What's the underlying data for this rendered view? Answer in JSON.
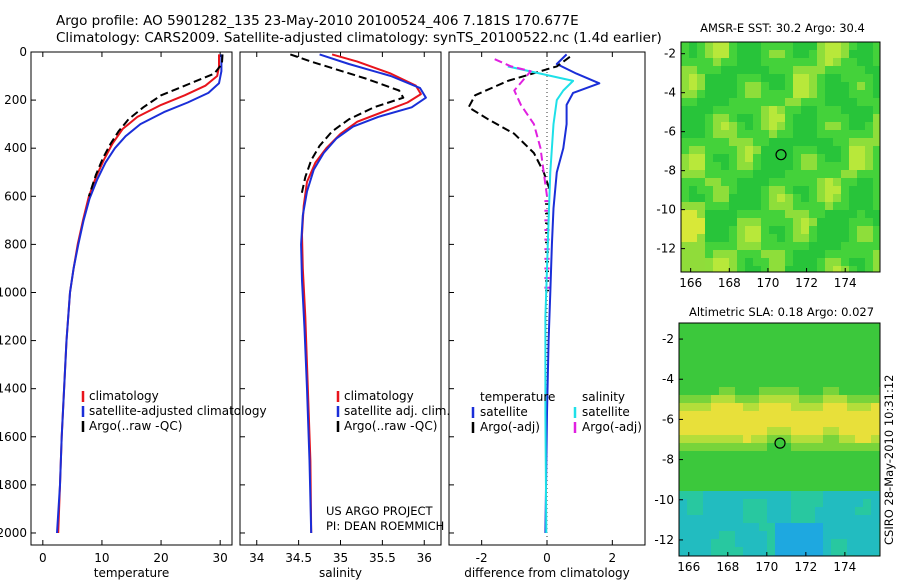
{
  "header": {
    "line1": "Argo profile: AO 5901282_135 23-May-2010 20100524_406 7.181S 170.677E",
    "line2": "Climatology: CARS2009. Satellite-adjusted climatology: synTS_20100522.nc (1.4d earlier)"
  },
  "credit": {
    "project": "US ARGO PROJECT",
    "pi": "PI: DEAN ROEMMICH",
    "stamp": "CSIRO 28-May-2010 10:31:12"
  },
  "colors": {
    "climatology": "#e8141c",
    "satellite": "#1a2ed8",
    "argo": "#000000",
    "salinity_satellite": "#1ee0e8",
    "salinity_argo": "#e020e0"
  },
  "chart_data": [
    {
      "type": "line",
      "xlabel": "temperature",
      "ylabel": "",
      "xlim": [
        -2,
        32
      ],
      "ylim": [
        2050,
        0
      ],
      "xticks": [
        0,
        10,
        20,
        30
      ],
      "yticks": [
        0,
        200,
        400,
        600,
        800,
        1000,
        1200,
        1400,
        1600,
        1800,
        2000
      ],
      "legend": [
        "climatology",
        "satellite-adjusted climatology",
        "Argo(..raw -QC)"
      ],
      "series": [
        {
          "name": "climatology",
          "color": "#e8141c",
          "dash": "",
          "points": [
            [
              29.8,
              10
            ],
            [
              29.8,
              60
            ],
            [
              29.5,
              100
            ],
            [
              27.5,
              140
            ],
            [
              24,
              180
            ],
            [
              20,
              220
            ],
            [
              16,
              270
            ],
            [
              13.5,
              320
            ],
            [
              11.8,
              380
            ],
            [
              10.3,
              450
            ],
            [
              9,
              520
            ],
            [
              7.8,
              600
            ],
            [
              6.8,
              700
            ],
            [
              5.9,
              800
            ],
            [
              5.2,
              900
            ],
            [
              4.6,
              1000
            ],
            [
              4.0,
              1200
            ],
            [
              3.6,
              1400
            ],
            [
              3.2,
              1600
            ],
            [
              2.9,
              1800
            ],
            [
              2.6,
              2000
            ]
          ]
        },
        {
          "name": "satellite-adjusted climatology",
          "color": "#1a2ed8",
          "dash": "",
          "points": [
            [
              30.2,
              10
            ],
            [
              30.2,
              80
            ],
            [
              29.8,
              130
            ],
            [
              28,
              170
            ],
            [
              24.5,
              210
            ],
            [
              20.5,
              250
            ],
            [
              16.5,
              300
            ],
            [
              14,
              350
            ],
            [
              12.2,
              400
            ],
            [
              10.6,
              460
            ],
            [
              9.2,
              530
            ],
            [
              7.9,
              610
            ],
            [
              6.9,
              700
            ],
            [
              6,
              800
            ],
            [
              5.2,
              900
            ],
            [
              4.6,
              1000
            ],
            [
              4,
              1200
            ],
            [
              3.6,
              1400
            ],
            [
              3.2,
              1600
            ],
            [
              2.9,
              1800
            ],
            [
              2.4,
              2000
            ]
          ]
        },
        {
          "name": "Argo(..raw -QC)",
          "color": "#000000",
          "dash": "8,4",
          "points": [
            [
              30.4,
              10
            ],
            [
              30.3,
              50
            ],
            [
              29,
              90
            ],
            [
              25,
              130
            ],
            [
              20,
              180
            ],
            [
              17,
              230
            ],
            [
              14.5,
              280
            ],
            [
              12.8,
              330
            ],
            [
              11.5,
              380
            ],
            [
              10.2,
              440
            ],
            [
              9,
              510
            ],
            [
              7.8,
              600
            ]
          ]
        }
      ]
    },
    {
      "type": "line",
      "xlabel": "salinity",
      "xlim": [
        33.8,
        36.2
      ],
      "ylim": [
        2050,
        0
      ],
      "xticks": [
        34,
        34.5,
        35,
        35.5,
        36
      ],
      "xticklabels": [
        "34",
        "34.5",
        "35",
        "35.5",
        "36"
      ],
      "legend": [
        "climatology",
        "satellite adj. clim.",
        "Argo(..raw -QC)"
      ],
      "series": [
        {
          "name": "climatology",
          "color": "#e8141c",
          "dash": "",
          "points": [
            [
              34.9,
              10
            ],
            [
              35.2,
              40
            ],
            [
              35.6,
              90
            ],
            [
              35.9,
              140
            ],
            [
              35.96,
              175
            ],
            [
              35.8,
              210
            ],
            [
              35.5,
              250
            ],
            [
              35.2,
              290
            ],
            [
              35,
              340
            ],
            [
              34.83,
              400
            ],
            [
              34.7,
              460
            ],
            [
              34.6,
              540
            ],
            [
              34.56,
              640
            ],
            [
              34.54,
              760
            ],
            [
              34.55,
              900
            ],
            [
              34.58,
              1100
            ],
            [
              34.6,
              1300
            ],
            [
              34.62,
              1500
            ],
            [
              34.64,
              1700
            ],
            [
              34.65,
              2000
            ]
          ]
        },
        {
          "name": "satellite adj. clim.",
          "color": "#1a2ed8",
          "dash": "",
          "points": [
            [
              34.75,
              10
            ],
            [
              35.1,
              50
            ],
            [
              35.6,
              100
            ],
            [
              35.95,
              150
            ],
            [
              36.02,
              190
            ],
            [
              35.85,
              230
            ],
            [
              35.45,
              270
            ],
            [
              35.15,
              310
            ],
            [
              34.95,
              360
            ],
            [
              34.8,
              420
            ],
            [
              34.68,
              490
            ],
            [
              34.6,
              580
            ],
            [
              34.55,
              680
            ],
            [
              34.53,
              800
            ],
            [
              34.54,
              950
            ],
            [
              34.57,
              1150
            ],
            [
              34.6,
              1400
            ],
            [
              34.63,
              1700
            ],
            [
              34.65,
              2000
            ]
          ]
        },
        {
          "name": "Argo(..raw -QC)",
          "color": "#000000",
          "dash": "8,4",
          "points": [
            [
              34.4,
              10
            ],
            [
              34.65,
              40
            ],
            [
              35.3,
              110
            ],
            [
              35.7,
              160
            ],
            [
              35.75,
              190
            ],
            [
              35.4,
              230
            ],
            [
              35.1,
              280
            ],
            [
              34.9,
              330
            ],
            [
              34.75,
              390
            ],
            [
              34.65,
              450
            ],
            [
              34.58,
              520
            ],
            [
              34.53,
              600
            ]
          ]
        }
      ]
    },
    {
      "type": "line",
      "xlabel": "difference from climatology",
      "xlim": [
        -3,
        3
      ],
      "ylim": [
        2050,
        0
      ],
      "xticks": [
        -2,
        0,
        2
      ],
      "legend_left_title": "temperature",
      "legend_right_title": "salinity",
      "legend_left": [
        "satellite",
        "Argo(-adj)"
      ],
      "legend_right": [
        "satellite",
        "Argo(-adj)"
      ],
      "series": [
        {
          "name": "temperature satellite",
          "color": "#1a2ed8",
          "dash": "",
          "points": [
            [
              0.6,
              10
            ],
            [
              0.3,
              50
            ],
            [
              0.9,
              90
            ],
            [
              1.6,
              130
            ],
            [
              0.8,
              170
            ],
            [
              0.6,
              220
            ],
            [
              0.6,
              300
            ],
            [
              0.5,
              400
            ],
            [
              0.3,
              500
            ],
            [
              0.2,
              650
            ],
            [
              0.15,
              800
            ],
            [
              0.1,
              1000
            ],
            [
              0.05,
              1200
            ],
            [
              0,
              1500
            ],
            [
              -0.05,
              2000
            ]
          ]
        },
        {
          "name": "temperature Argo(-adj)",
          "color": "#000000",
          "dash": "8,4",
          "points": [
            [
              0.7,
              20
            ],
            [
              0.3,
              60
            ],
            [
              -1.2,
              120
            ],
            [
              -2.2,
              180
            ],
            [
              -2.4,
              230
            ],
            [
              -1.8,
              280
            ],
            [
              -1.0,
              340
            ],
            [
              -0.4,
              420
            ],
            [
              -0.1,
              500
            ],
            [
              0.1,
              580
            ]
          ]
        },
        {
          "name": "salinity satellite",
          "color": "#1ee0e8",
          "dash": "",
          "points": [
            [
              -1.2,
              60
            ],
            [
              -0.2,
              90
            ],
            [
              0.8,
              120
            ],
            [
              0.5,
              160
            ],
            [
              0.3,
              200
            ],
            [
              0.2,
              300
            ],
            [
              0.1,
              500
            ],
            [
              0.05,
              700
            ],
            [
              0,
              900
            ],
            [
              -0.05,
              1100
            ],
            [
              -0.05,
              1500
            ],
            [
              -0.02,
              2000
            ]
          ]
        },
        {
          "name": "salinity Argo(-adj)",
          "color": "#e020e0",
          "dash": "8,4",
          "points": [
            [
              -1.6,
              30
            ],
            [
              -1.1,
              60
            ],
            [
              -0.5,
              80
            ],
            [
              -1.0,
              160
            ],
            [
              -0.8,
              220
            ],
            [
              -0.4,
              300
            ],
            [
              -0.2,
              400
            ],
            [
              -0.1,
              500
            ],
            [
              0,
              600
            ]
          ]
        }
      ],
      "extra": "vertical dotted zero line; dashed short horizontal ticks along 0 from 600 to 1000 dbar"
    }
  ],
  "maps": [
    {
      "title": "AMSR-E SST: 30.2 Argo: 30.4",
      "xticks": [
        166,
        168,
        170,
        172,
        174
      ],
      "yticks": [
        -2,
        -4,
        -6,
        -8,
        -10,
        -12
      ],
      "xlim": [
        165.5,
        175.8
      ],
      "ylim": [
        -13.2,
        -1.4
      ],
      "marker_lon": 170.677,
      "marker_lat": -7.181
    },
    {
      "title": "Altimetric SLA: 0.18 Argo: 0.027",
      "xticks": [
        166,
        168,
        170,
        172,
        174
      ],
      "yticks": [
        -2,
        -4,
        -6,
        -8,
        -10,
        -12
      ],
      "xlim": [
        165.5,
        175.8
      ],
      "ylim": [
        -12.8,
        -1.2
      ],
      "marker_lon": 170.677,
      "marker_lat": -7.181
    }
  ]
}
